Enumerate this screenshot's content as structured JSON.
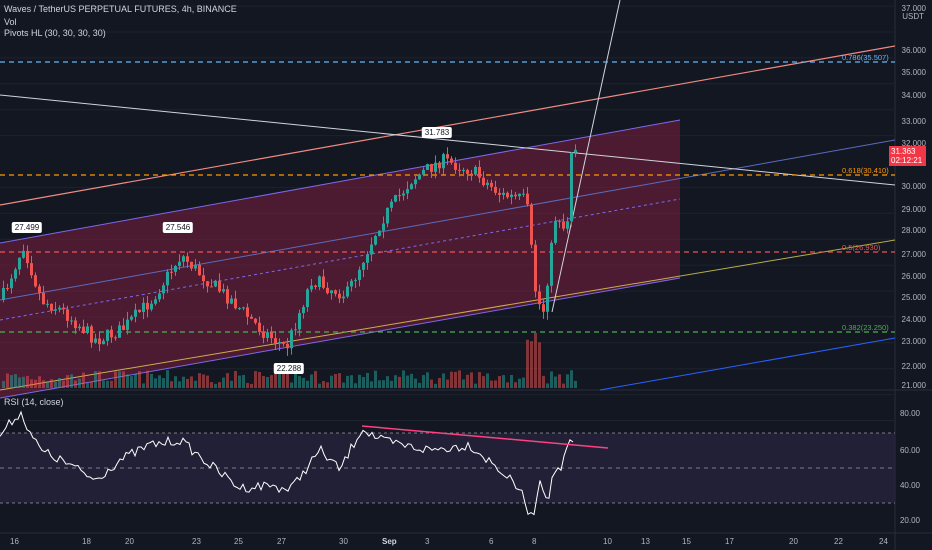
{
  "header": {
    "symbol_title": "Waves / TetherUS PERPETUAL FUTURES, 4h, BINANCE",
    "vol_label": "Vol",
    "pivots_label": "Pivots HL (30, 30, 30, 30)",
    "currency": "USDT"
  },
  "rsi_pane": {
    "label": "RSI (14, close)",
    "ticks": [
      "80.00",
      "60.00",
      "40.00",
      "20.00"
    ]
  },
  "price_axis": {
    "ticks": [
      "37.000",
      "36.000",
      "35.000",
      "34.000",
      "33.000",
      "32.000",
      "30.000",
      "29.000",
      "28.000",
      "27.000",
      "26.000",
      "25.000",
      "24.000",
      "23.000",
      "22.000",
      "21.000"
    ],
    "current_price": "31.363",
    "countdown": "02:12:21"
  },
  "time_axis": {
    "ticks": [
      "16",
      "18",
      "20",
      "23",
      "25",
      "27",
      "30",
      "Sep",
      "3",
      "6",
      "8",
      "10",
      "13",
      "15",
      "17",
      "20",
      "22",
      "24"
    ]
  },
  "annotations": {
    "pivot_labels": [
      "27.499",
      "27.546",
      "22.288",
      "31.783"
    ],
    "fib_labels": [
      "0.786(35.507)",
      "0.618(30.410)",
      "0.5(26.930)",
      "0.382(23.250)"
    ]
  },
  "colors": {
    "background": "#131722",
    "up": "#26a69a",
    "down": "#ef5350",
    "channel_fill": "#7b1f3f",
    "channel_line": "#7b68ee",
    "fib_786": "#64b5f6",
    "fib_618": "#ff9800",
    "fib_5": "#ef5350",
    "fib_382": "#4caf50",
    "trend_orange": "#f28b82",
    "rsi_line": "#ffffff",
    "rsi_trend": "#ff4081",
    "rsi_band": "#2a2540"
  }
}
